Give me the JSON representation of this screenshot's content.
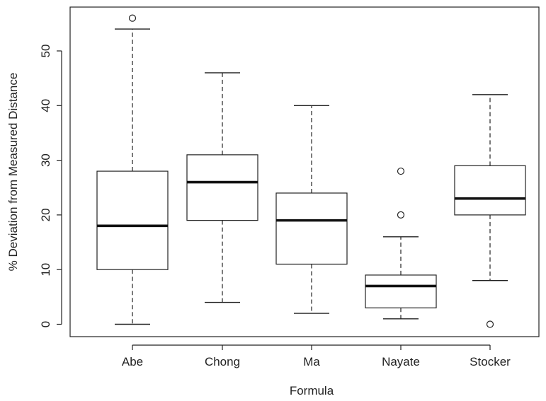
{
  "chart_data": {
    "type": "boxplot",
    "title": "",
    "xlabel": "Formula",
    "ylabel": "% Deviation from Measured Distance",
    "ylim": [
      -2,
      58
    ],
    "yticks": [
      0,
      10,
      20,
      30,
      40,
      50
    ],
    "grid": false,
    "categories": [
      "Abe",
      "Chong",
      "Ma",
      "Nayate",
      "Stocker"
    ],
    "boxes": [
      {
        "category": "Abe",
        "whisker_low": 0,
        "q1": 10,
        "median": 18,
        "q3": 28,
        "whisker_high": 54,
        "outliers": [
          56
        ]
      },
      {
        "category": "Chong",
        "whisker_low": 4,
        "q1": 19,
        "median": 26,
        "q3": 31,
        "whisker_high": 46,
        "outliers": []
      },
      {
        "category": "Ma",
        "whisker_low": 2,
        "q1": 11,
        "median": 19,
        "q3": 24,
        "whisker_high": 40,
        "outliers": []
      },
      {
        "category": "Nayate",
        "whisker_low": 1,
        "q1": 3,
        "median": 7,
        "q3": 9,
        "whisker_high": 16,
        "outliers": [
          20,
          28
        ]
      },
      {
        "category": "Stocker",
        "whisker_low": 8,
        "q1": 20,
        "median": 23,
        "q3": 29,
        "whisker_high": 42,
        "outliers": [
          0
        ]
      }
    ]
  }
}
